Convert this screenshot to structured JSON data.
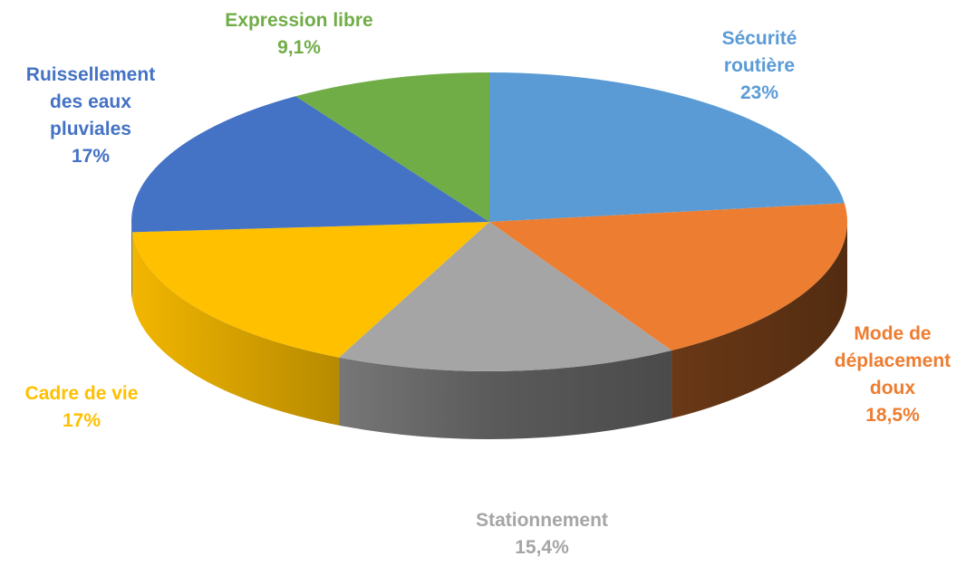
{
  "chart_data": {
    "type": "pie",
    "categories": [
      "Sécurité routière",
      "Mode de déplacement doux",
      "Stationnement",
      "Cadre de vie",
      "Ruissellement des eaux pluviales",
      "Expression libre"
    ],
    "values": [
      23,
      18.5,
      15.4,
      17,
      17,
      9.1
    ],
    "value_labels": [
      "23%",
      "18,5%",
      "15,4%",
      "17%",
      "17%",
      "9,1%"
    ],
    "colors": [
      "#5b9bd5",
      "#ed7d31",
      "#a5a5a5",
      "#ffc000",
      "#4472c4",
      "#70ad47"
    ]
  }
}
